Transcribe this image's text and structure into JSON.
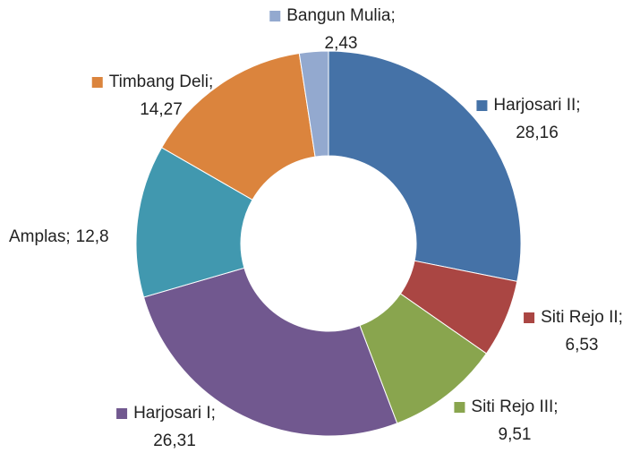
{
  "chart_data": {
    "type": "donut",
    "categories": [
      "Harjosari II",
      "Siti Rejo II",
      "Siti Rejo III",
      "Harjosari I",
      "Amplas",
      "Timbang Deli",
      "Bangun Mulia"
    ],
    "values": [
      28.16,
      6.53,
      9.51,
      26.31,
      12.8,
      14.27,
      2.43
    ],
    "value_labels": [
      "28,16",
      "6,53",
      "9,51",
      "26,31",
      "12,8",
      "14,27",
      "2,43"
    ],
    "separator": ";",
    "colors": [
      "#4572a7",
      "#aa4643",
      "#89a54e",
      "#71588f",
      "#4198af",
      "#db843d",
      "#93a9cf"
    ]
  }
}
